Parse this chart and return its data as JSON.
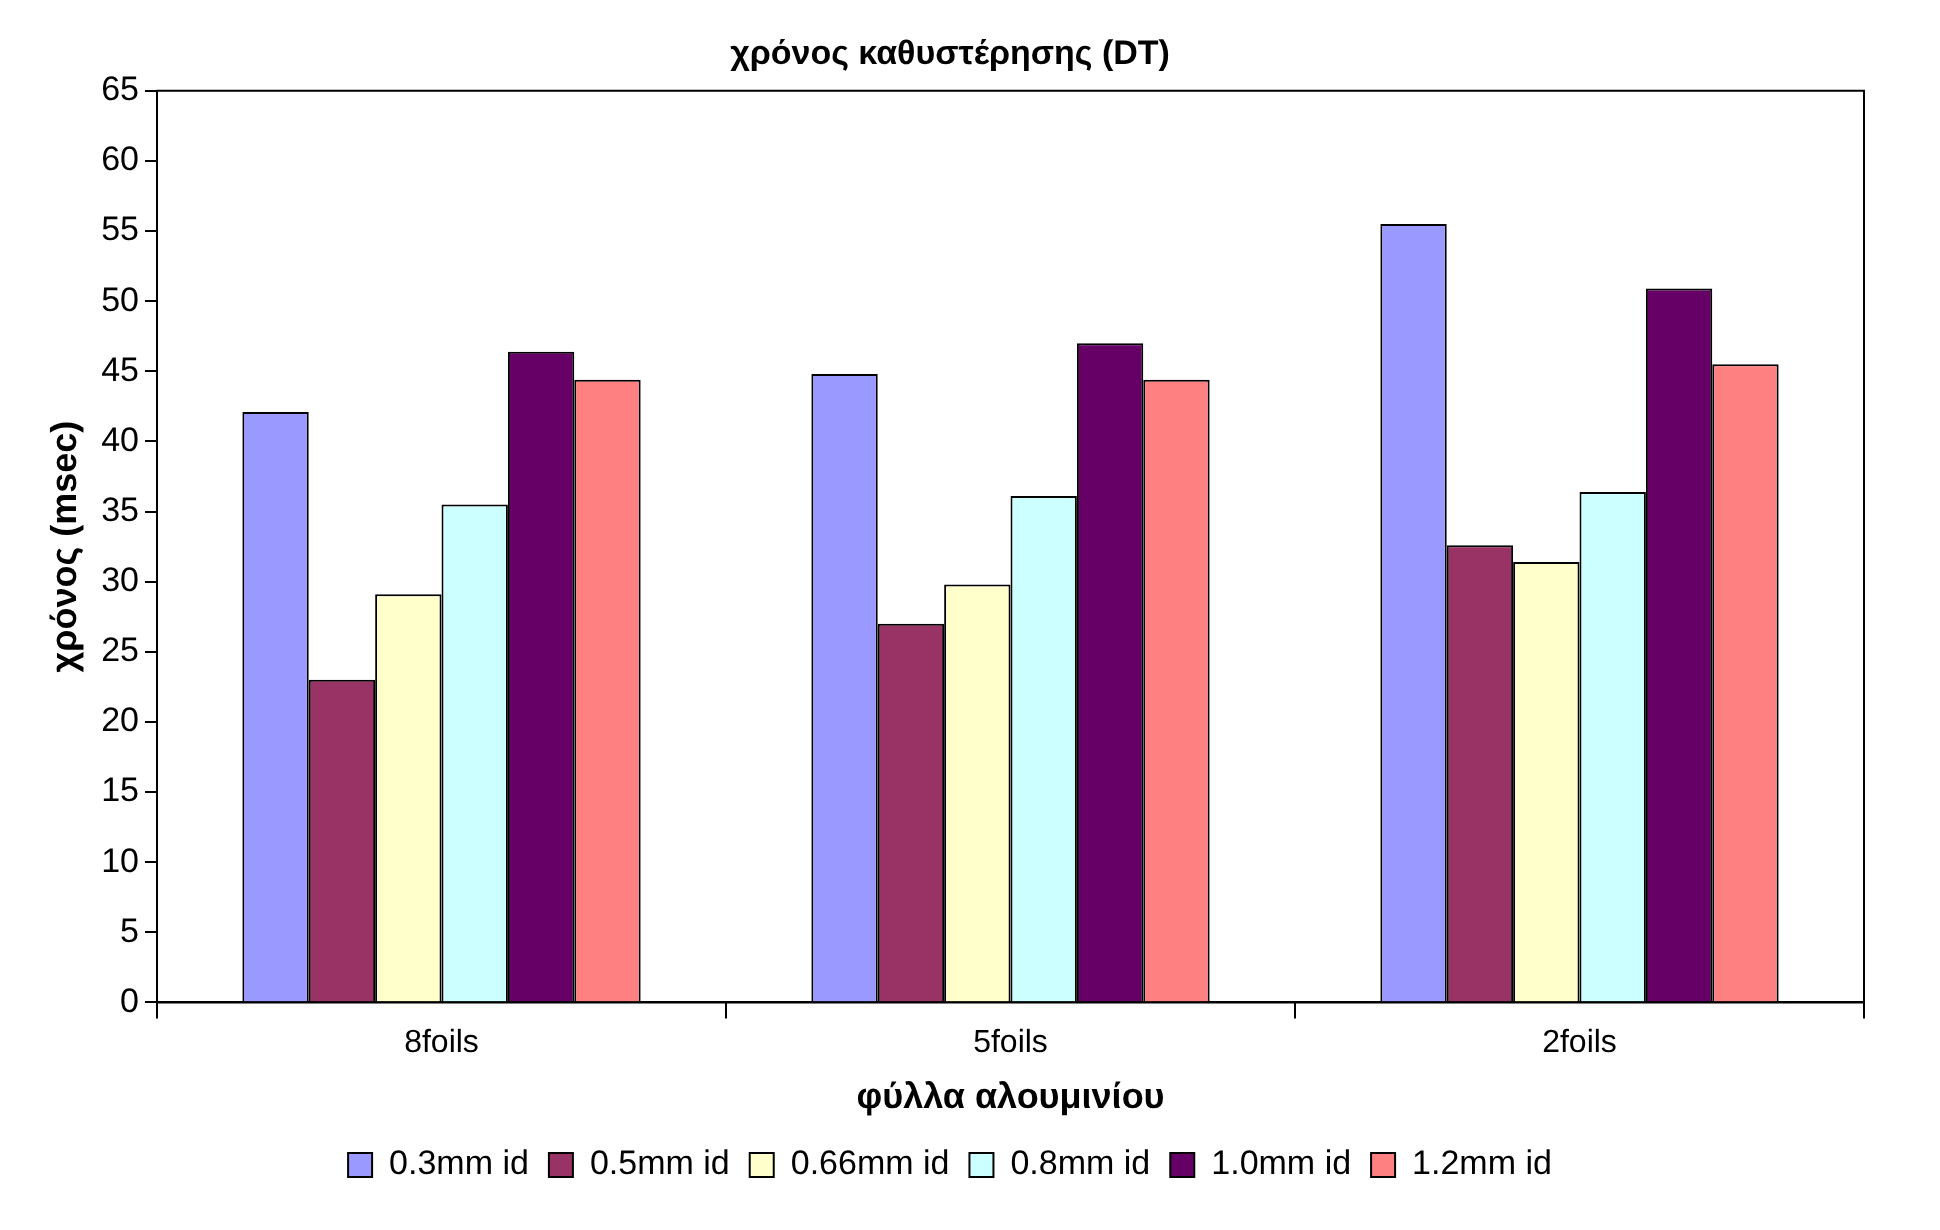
{
  "chart_data": {
    "type": "bar",
    "title": "χρόνος καθυστέρησης (DT)",
    "xlabel": "φύλλα αλουμινίου",
    "ylabel": "χρόνος (msec)",
    "categories": [
      "8foils",
      "5foils",
      "2foils"
    ],
    "series": [
      {
        "name": "0.3mm id",
        "color": "#9999ff",
        "values": [
          42.1,
          44.8,
          55.5
        ]
      },
      {
        "name": "0.5mm id",
        "color": "#993366",
        "values": [
          23.0,
          27.0,
          32.6
        ]
      },
      {
        "name": "0.66mm id",
        "color": "#ffffcc",
        "values": [
          29.1,
          29.8,
          31.4
        ]
      },
      {
        "name": "0.8mm id",
        "color": "#ccffff",
        "values": [
          35.5,
          36.1,
          36.4
        ]
      },
      {
        "name": "1.0mm id",
        "color": "#660066",
        "values": [
          46.4,
          47.0,
          50.9
        ]
      },
      {
        "name": "1.2mm id",
        "color": "#ff8080",
        "values": [
          44.4,
          44.4,
          45.5
        ]
      }
    ],
    "ylim": [
      0,
      65
    ],
    "yticks": [
      0,
      5,
      10,
      15,
      20,
      25,
      30,
      35,
      40,
      45,
      50,
      55,
      60,
      65
    ],
    "grid": false,
    "legend": "bottom"
  }
}
